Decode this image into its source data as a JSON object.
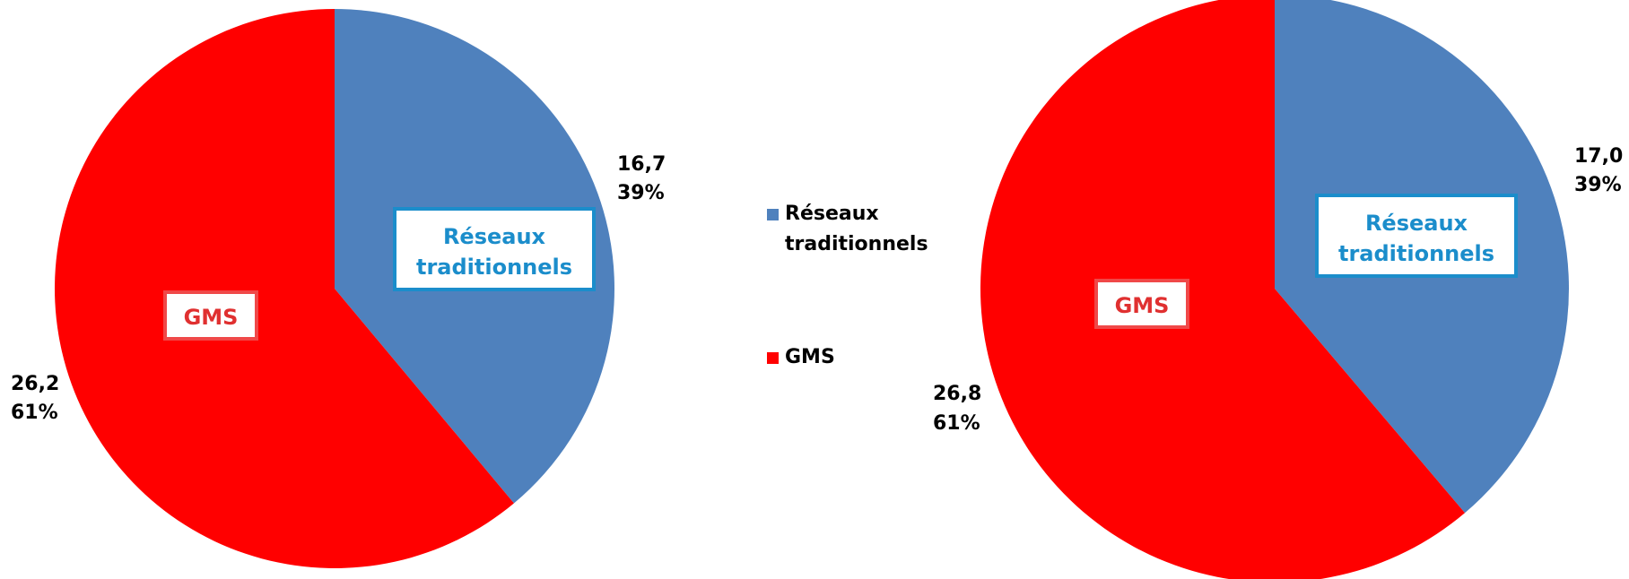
{
  "chart_data": [
    {
      "type": "pie",
      "title": "",
      "slices": [
        {
          "label": "Réseaux traditionnels",
          "value": 16.7,
          "percent": "39%",
          "value_text": "16,7"
        },
        {
          "label": "GMS",
          "value": 26.2,
          "percent": "61%",
          "value_text": "26,2"
        }
      ]
    },
    {
      "type": "pie",
      "title": "",
      "slices": [
        {
          "label": "Réseaux traditionnels",
          "value": 17.0,
          "percent": "39%",
          "value_text": "17,0"
        },
        {
          "label": "GMS",
          "value": 26.8,
          "percent": "61%",
          "value_text": "26,8"
        }
      ]
    }
  ],
  "legend": {
    "placement": "center",
    "items": [
      {
        "label_line1": "Réseaux",
        "label_line2": "traditionnels",
        "color": "#4F81BD"
      },
      {
        "label_line1": "GMS",
        "label_line2": "",
        "color": "#FF0000"
      }
    ]
  },
  "in_slice_labels": {
    "reseaux_line1": "Réseaux",
    "reseaux_line2": "traditionnels",
    "gms": "GMS"
  },
  "colors": {
    "reseaux": "#4F81BD",
    "gms": "#FF0000",
    "reseaux_label_text": "#1B8DCB",
    "reseaux_label_border": "#1B8DCB",
    "gms_label_text": "#E03030",
    "gms_label_border": "#F04848"
  }
}
